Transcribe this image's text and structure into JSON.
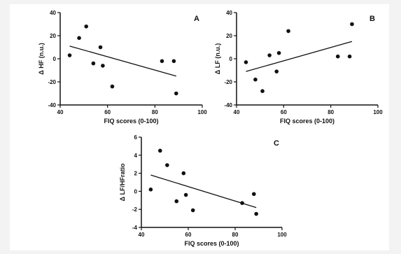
{
  "chart_data": [
    {
      "type": "scatter",
      "panel_label": "A",
      "xlabel": "FIQ scores (0-100)",
      "ylabel": "Δ HF (n.u.)",
      "xlim": [
        40,
        100
      ],
      "ylim": [
        -40,
        40
      ],
      "xticks": [
        40,
        60,
        80,
        100
      ],
      "yticks": [
        -40,
        -20,
        0,
        20,
        40
      ],
      "points": [
        {
          "x": 44,
          "y": 3
        },
        {
          "x": 48,
          "y": 18
        },
        {
          "x": 51,
          "y": 28
        },
        {
          "x": 54,
          "y": -4
        },
        {
          "x": 57,
          "y": 10
        },
        {
          "x": 58,
          "y": -6
        },
        {
          "x": 62,
          "y": -24
        },
        {
          "x": 83,
          "y": -2
        },
        {
          "x": 88,
          "y": -2
        },
        {
          "x": 89,
          "y": -30
        }
      ],
      "trendline": {
        "x": [
          44,
          89
        ],
        "y": [
          11,
          -15
        ]
      }
    },
    {
      "type": "scatter",
      "panel_label": "B",
      "xlabel": "FIQ scores (0-100)",
      "ylabel": "Δ LF (n.u.)",
      "xlim": [
        40,
        100
      ],
      "ylim": [
        -40,
        40
      ],
      "xticks": [
        40,
        60,
        80,
        100
      ],
      "yticks": [
        -40,
        -20,
        0,
        20,
        40
      ],
      "points": [
        {
          "x": 44,
          "y": -3
        },
        {
          "x": 48,
          "y": -18
        },
        {
          "x": 51,
          "y": -28
        },
        {
          "x": 54,
          "y": 3
        },
        {
          "x": 57,
          "y": -11
        },
        {
          "x": 58,
          "y": 5
        },
        {
          "x": 62,
          "y": 24
        },
        {
          "x": 83,
          "y": 2
        },
        {
          "x": 88,
          "y": 2
        },
        {
          "x": 89,
          "y": 30
        }
      ],
      "trendline": {
        "x": [
          44,
          89
        ],
        "y": [
          -11,
          15
        ]
      }
    },
    {
      "type": "scatter",
      "panel_label": "C",
      "xlabel": "FIQ scores (0-100)",
      "ylabel": "Δ LF/HFratio",
      "xlim": [
        40,
        100
      ],
      "ylim": [
        -4,
        6
      ],
      "xticks": [
        40,
        60,
        80,
        100
      ],
      "yticks": [
        -4,
        -2,
        0,
        2,
        4,
        6
      ],
      "points": [
        {
          "x": 44,
          "y": 0.2
        },
        {
          "x": 48,
          "y": 4.5
        },
        {
          "x": 51,
          "y": 2.9
        },
        {
          "x": 55,
          "y": -1.1
        },
        {
          "x": 58,
          "y": 2.0
        },
        {
          "x": 59,
          "y": -0.4
        },
        {
          "x": 62,
          "y": -2.1
        },
        {
          "x": 83,
          "y": -1.3
        },
        {
          "x": 88,
          "y": -0.3
        },
        {
          "x": 89,
          "y": -2.5
        }
      ],
      "trendline": {
        "x": [
          44,
          89
        ],
        "y": [
          1.8,
          -1.8
        ]
      }
    }
  ]
}
